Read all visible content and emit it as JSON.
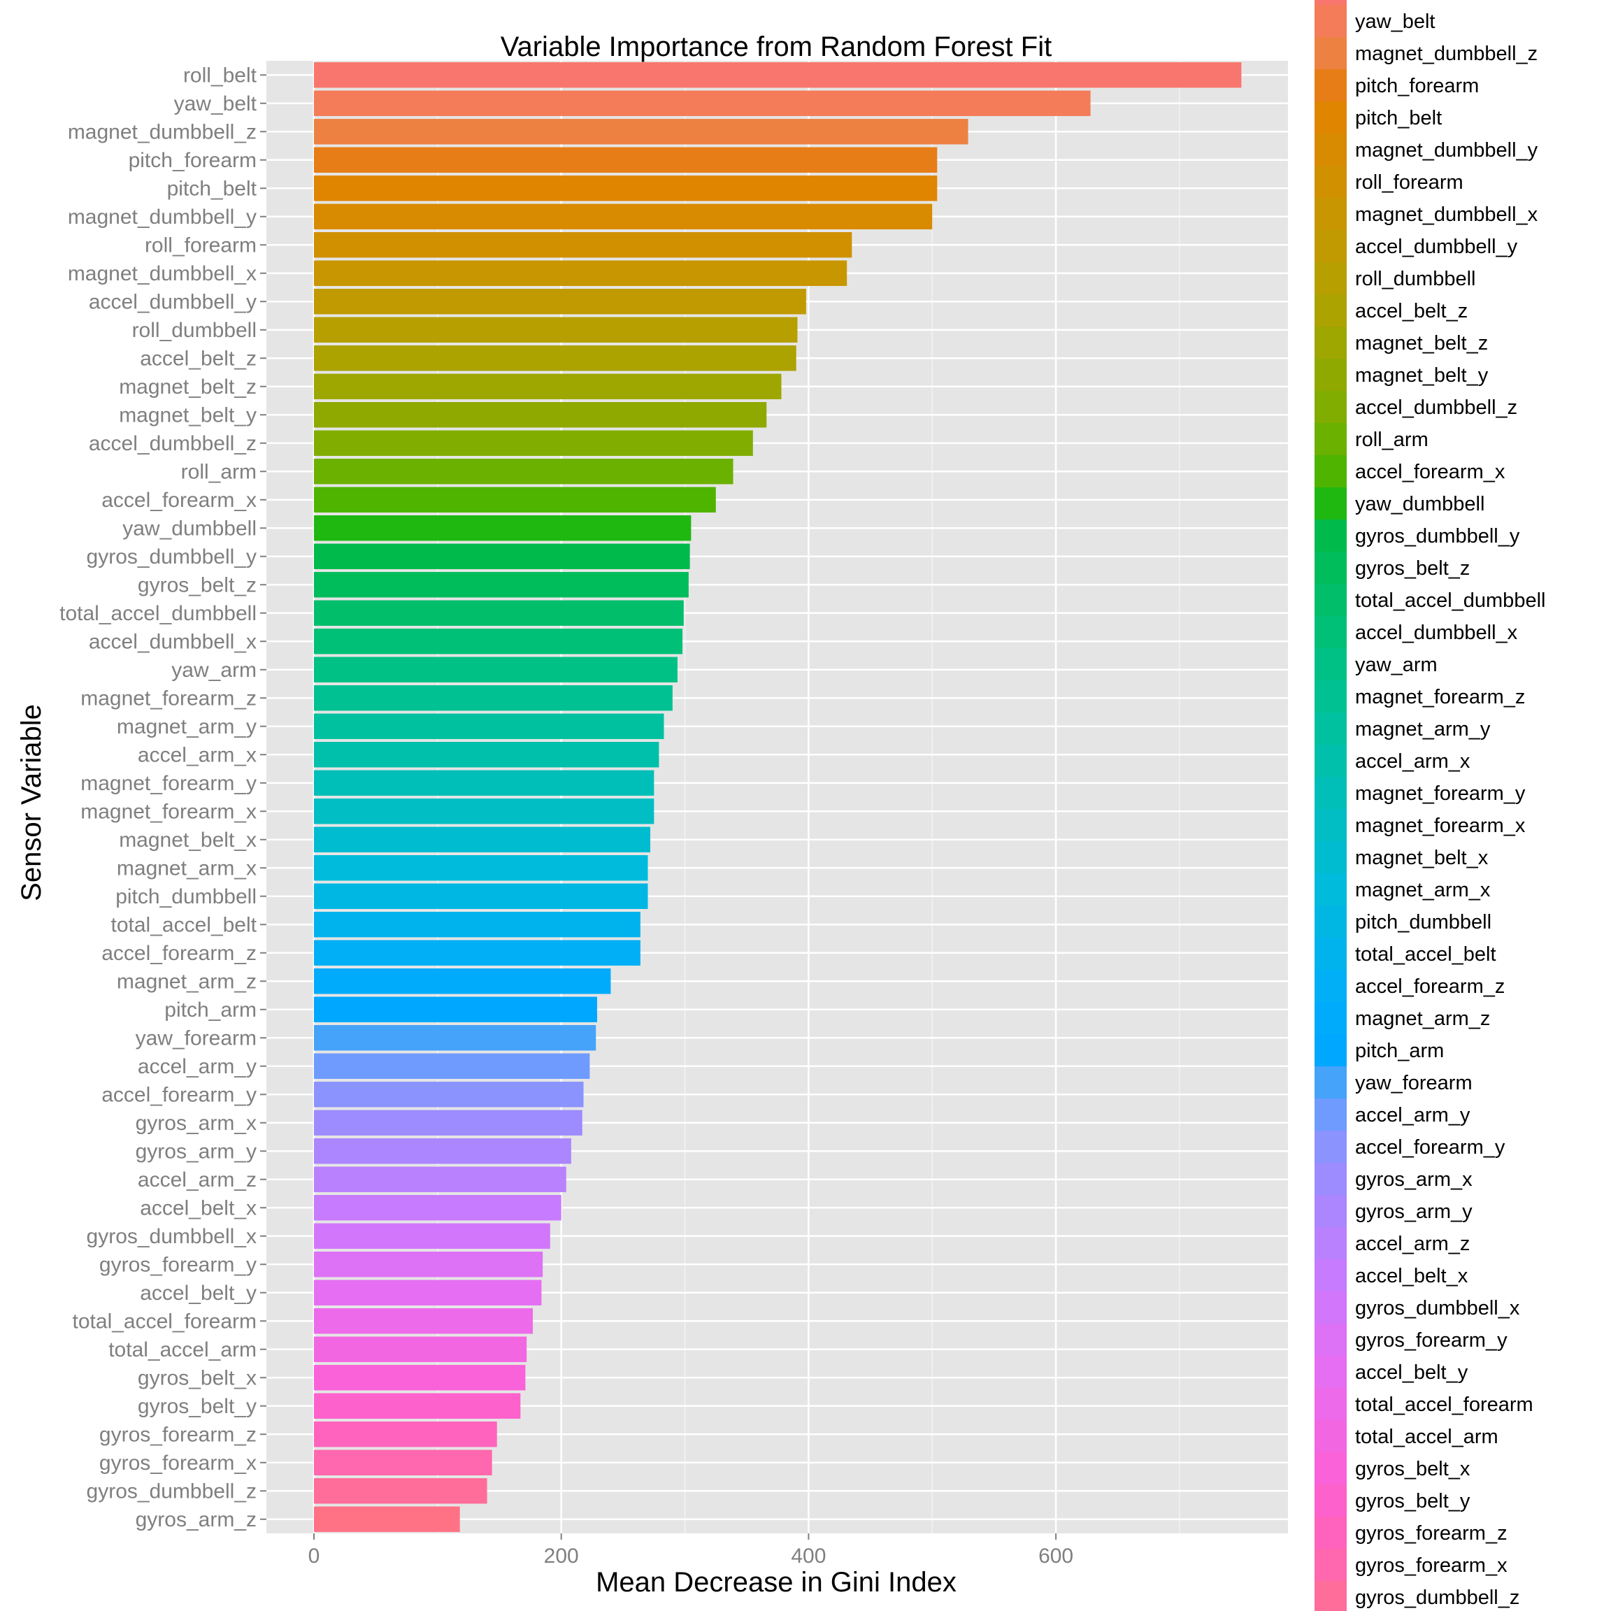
{
  "chart_data": {
    "type": "bar",
    "orientation": "horizontal",
    "title": "Variable Importance from Random Forest Fit",
    "xlabel": "Mean Decrease in Gini Index",
    "ylabel": "Sensor Variable",
    "xlim": [
      -37,
      757
    ],
    "x_ticks": [
      0,
      200,
      400,
      600
    ],
    "grid": true,
    "legend_position": "right",
    "categories": [
      "gyros_arm_z",
      "gyros_dumbbell_z",
      "gyros_forearm_x",
      "gyros_forearm_z",
      "gyros_belt_y",
      "gyros_belt_x",
      "total_accel_arm",
      "total_accel_forearm",
      "accel_belt_y",
      "gyros_forearm_y",
      "gyros_dumbbell_x",
      "accel_belt_x",
      "accel_arm_z",
      "gyros_arm_y",
      "gyros_arm_x",
      "accel_forearm_y",
      "accel_arm_y",
      "yaw_forearm",
      "pitch_arm",
      "magnet_arm_z",
      "accel_forearm_z",
      "total_accel_belt",
      "pitch_dumbbell",
      "magnet_arm_x",
      "magnet_belt_x",
      "magnet_forearm_x",
      "magnet_forearm_y",
      "accel_arm_x",
      "magnet_arm_y",
      "magnet_forearm_z",
      "yaw_arm",
      "accel_dumbbell_x",
      "total_accel_dumbbell",
      "gyros_belt_z",
      "gyros_dumbbell_y",
      "yaw_dumbbell",
      "accel_forearm_x",
      "roll_arm",
      "accel_dumbbell_z",
      "magnet_belt_y",
      "magnet_belt_z",
      "accel_belt_z",
      "roll_dumbbell",
      "accel_dumbbell_y",
      "magnet_dumbbell_x",
      "roll_forearm",
      "magnet_dumbbell_y",
      "pitch_belt",
      "pitch_forearm",
      "magnet_dumbbell_z",
      "yaw_belt",
      "roll_belt"
    ],
    "values": [
      118,
      140,
      144,
      148,
      167,
      171,
      172,
      177,
      184,
      185,
      191,
      200,
      204,
      208,
      217,
      218,
      223,
      228,
      229,
      240,
      264,
      264,
      270,
      270,
      272,
      275,
      275,
      279,
      283,
      290,
      294,
      298,
      299,
      303,
      304,
      305,
      325,
      339,
      355,
      366,
      378,
      390,
      391,
      398,
      431,
      435,
      500,
      504,
      504,
      529,
      628,
      750
    ],
    "colors": [
      "#ff7286",
      "#ff6d9b",
      "#ff67ae",
      "#ff63bd",
      "#fd61cc",
      "#f962d8",
      "#f366e2",
      "#ed6aeb",
      "#e66ef2",
      "#dd72f7",
      "#d276fb",
      "#c77bff",
      "#ba81ff",
      "#ab86ff",
      "#9c8cff",
      "#8b93ff",
      "#6f9bff",
      "#45a3f9",
      "#00a7ff",
      "#00abfc",
      "#00aff5",
      "#00b3ed",
      "#00b7e4",
      "#00bbdb",
      "#00bcd0",
      "#00bec4",
      "#00bfb8",
      "#00c0ab",
      "#00c19f",
      "#00c192",
      "#00c185",
      "#00c078",
      "#00be6a",
      "#00bd5c",
      "#00bb4c",
      "#1fb811",
      "#4eb400",
      "#6bb100",
      "#80ad00",
      "#8fa900",
      "#9ea600",
      "#aca200",
      "#b79f00",
      "#c09a00",
      "#c89600",
      "#d09000",
      "#d88a00",
      "#e08500",
      "#e77d17",
      "#ed8141",
      "#f47c59",
      "#f8766d"
    ],
    "legend": {
      "entries": [
        "yaw_belt",
        "magnet_dumbbell_z",
        "pitch_forearm",
        "pitch_belt",
        "magnet_dumbbell_y",
        "roll_forearm",
        "magnet_dumbbell_x",
        "accel_dumbbell_y",
        "roll_dumbbell",
        "accel_belt_z",
        "magnet_belt_z",
        "magnet_belt_y",
        "accel_dumbbell_z",
        "roll_arm",
        "accel_forearm_x",
        "yaw_dumbbell",
        "gyros_dumbbell_y",
        "gyros_belt_z",
        "total_accel_dumbbell",
        "accel_dumbbell_x",
        "yaw_arm",
        "magnet_forearm_z",
        "magnet_arm_y",
        "accel_arm_x",
        "magnet_forearm_y",
        "magnet_forearm_x",
        "magnet_belt_x",
        "magnet_arm_x",
        "pitch_dumbbell",
        "total_accel_belt",
        "accel_forearm_z",
        "magnet_arm_z",
        "pitch_arm",
        "yaw_forearm",
        "accel_arm_y",
        "accel_forearm_y",
        "gyros_arm_x",
        "gyros_arm_y",
        "accel_arm_z",
        "accel_belt_x",
        "gyros_dumbbell_x",
        "gyros_forearm_y",
        "accel_belt_y",
        "total_accel_forearm",
        "total_accel_arm",
        "gyros_belt_x",
        "gyros_belt_y",
        "gyros_forearm_z",
        "gyros_forearm_x",
        "gyros_dumbbell_z"
      ],
      "colors": [
        "#f47c59",
        "#ed8141",
        "#e77d17",
        "#e08500",
        "#d88a00",
        "#d09000",
        "#c89600",
        "#c09a00",
        "#b79f00",
        "#aca200",
        "#9ea600",
        "#8fa900",
        "#80ad00",
        "#6bb100",
        "#4eb400",
        "#1fb811",
        "#00bb4c",
        "#00bd5c",
        "#00be6a",
        "#00c078",
        "#00c185",
        "#00c192",
        "#00c19f",
        "#00c0ab",
        "#00bfb8",
        "#00bec4",
        "#00bcd0",
        "#00bbdb",
        "#00b7e4",
        "#00b3ed",
        "#00aff5",
        "#00abfc",
        "#00a7ff",
        "#45a3f9",
        "#6f9bff",
        "#8b93ff",
        "#9c8cff",
        "#ab86ff",
        "#ba81ff",
        "#c77bff",
        "#d276fb",
        "#dd72f7",
        "#e66ef2",
        "#ed6aeb",
        "#f366e2",
        "#f962d8",
        "#fd61cc",
        "#ff63bd",
        "#ff67ae",
        "#ff6d9b"
      ],
      "top_clipped_color": "#f8766d"
    },
    "background_color": "#e5e5e5",
    "grid_color": "#ffffff"
  }
}
